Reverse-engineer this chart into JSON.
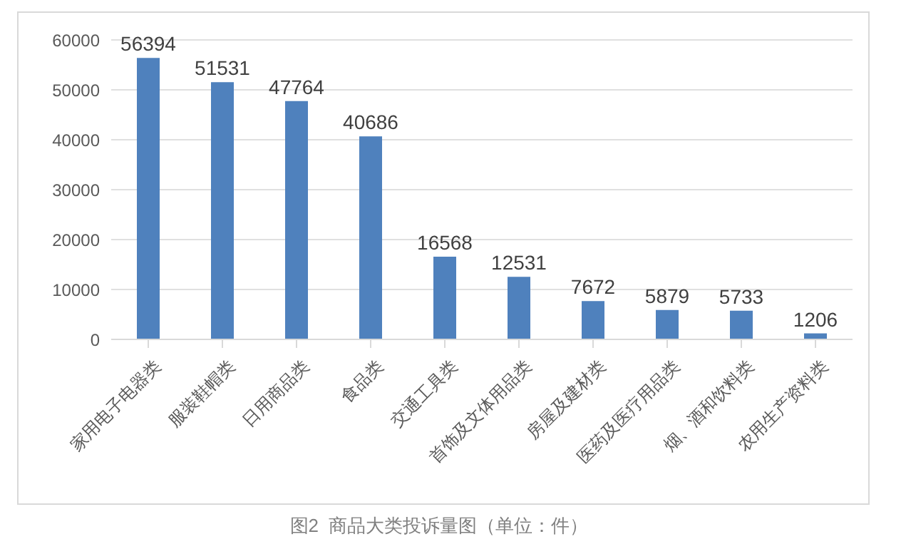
{
  "chart_data": {
    "type": "bar",
    "categories": [
      "家用电子电器类",
      "服装鞋帽类",
      "日用商品类",
      "食品类",
      "交通工具类",
      "首饰及文体用品类",
      "房屋及建材类",
      "医药及医疗用品类",
      "烟、酒和饮料类",
      "农用生产资料类"
    ],
    "values": [
      56394,
      51531,
      47764,
      40686,
      16568,
      12531,
      7672,
      5879,
      5733,
      1206
    ],
    "color": "#4f81bd",
    "ylim": [
      0,
      60000
    ],
    "yticks": [
      0,
      10000,
      20000,
      30000,
      40000,
      50000,
      60000
    ],
    "grid": "y",
    "data_labels": true,
    "legend": false,
    "annotations": [
      "图2  商品大类投诉量图（单位：件）"
    ]
  }
}
